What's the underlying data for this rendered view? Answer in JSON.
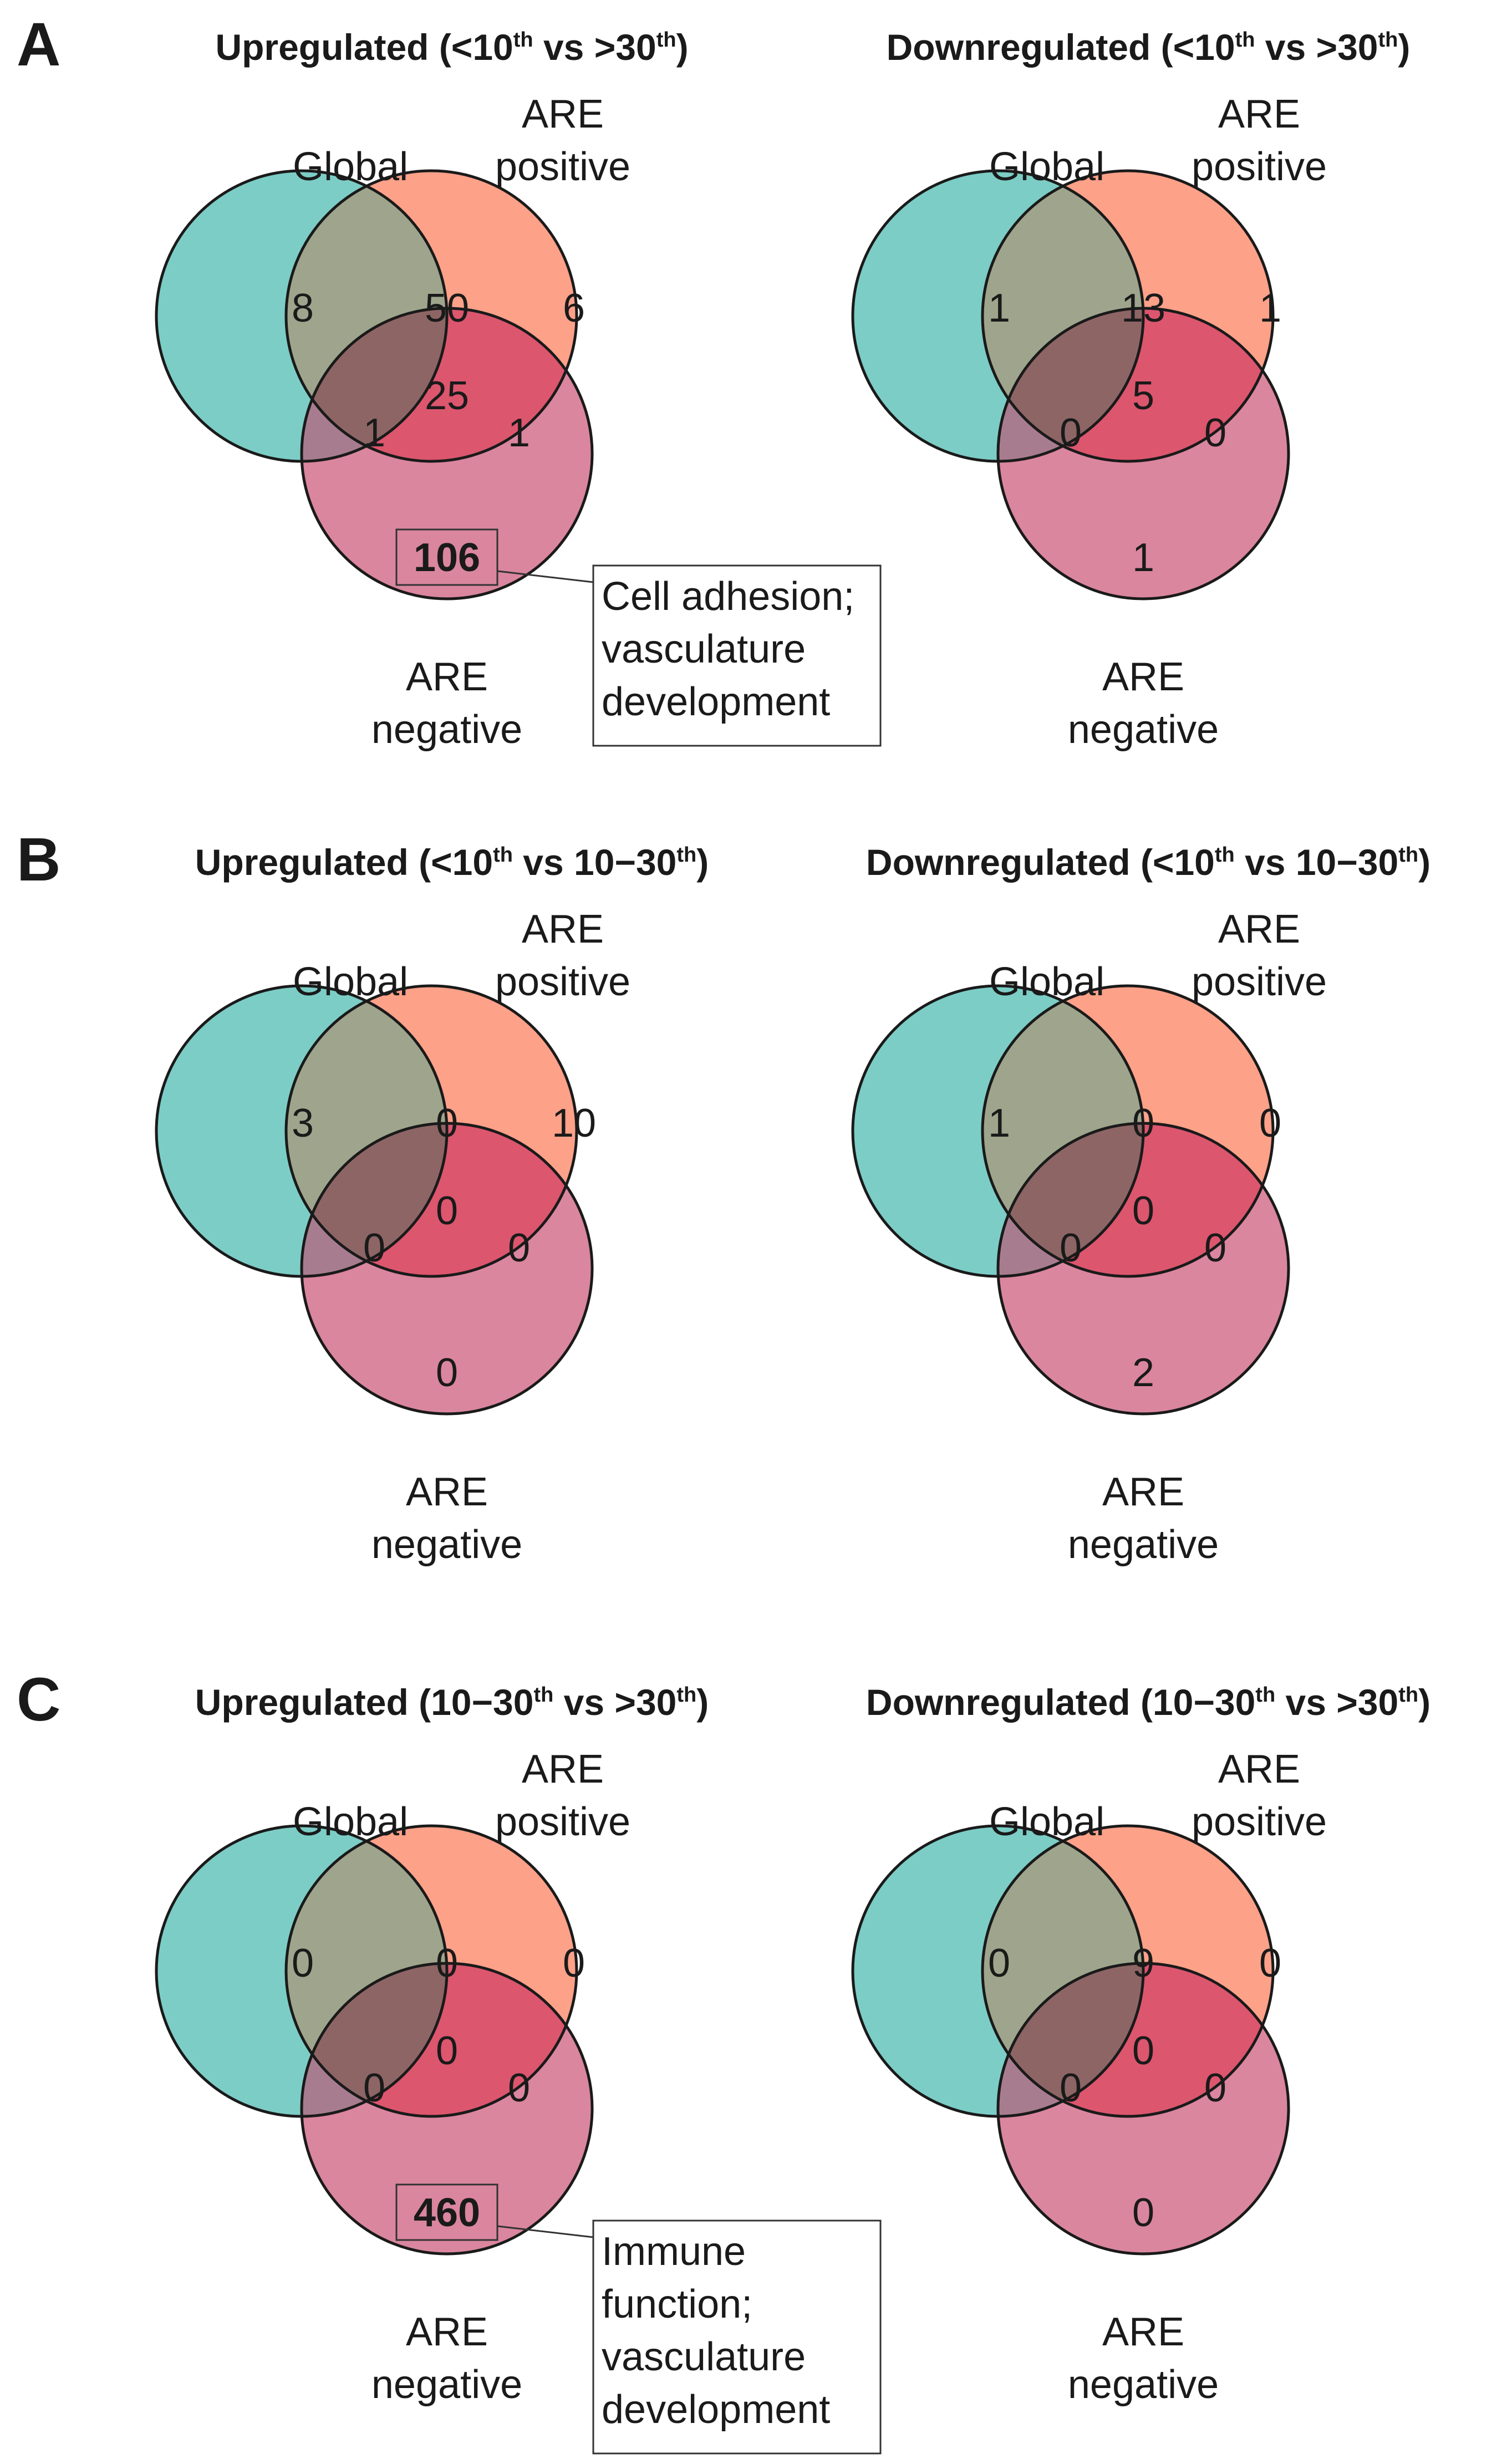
{
  "colors": {
    "global": "#7ccdc6",
    "are_positive": "#fda189",
    "are_negative": "#da869e",
    "global_x_positive": "#9ea58c",
    "global_x_negative": "#a87c8f",
    "positive_x_negative": "#dc566e",
    "all_three": "#8e6565"
  },
  "set_labels": {
    "global": "Global",
    "are_positive": [
      "ARE",
      "positive"
    ],
    "are_negative": [
      "ARE",
      "negative"
    ]
  },
  "panels": [
    {
      "letter": "A",
      "diagrams": [
        {
          "title_prefix": "Upregulated (<10",
          "sup1": "th",
          "title_mid": " vs >30",
          "sup2": "th",
          "title_suffix": ")",
          "counts": {
            "global_only": "8",
            "global_positive": "50",
            "positive_only": "6",
            "all": "25",
            "global_negative": "1",
            "positive_negative": "1",
            "negative_only": "106"
          },
          "highlight_negative": true,
          "note": [
            "Cell adhesion;",
            "vasculature",
            "development"
          ]
        },
        {
          "title_prefix": "Downregulated (<10",
          "sup1": "th",
          "title_mid": " vs >30",
          "sup2": "th",
          "title_suffix": ")",
          "counts": {
            "global_only": "1",
            "global_positive": "13",
            "positive_only": "1",
            "all": "5",
            "global_negative": "0",
            "positive_negative": "0",
            "negative_only": "1"
          },
          "highlight_negative": false,
          "note": []
        }
      ]
    },
    {
      "letter": "B",
      "diagrams": [
        {
          "title_prefix": "Upregulated (<10",
          "sup1": "th",
          "title_mid": " vs 10−30",
          "sup2": "th",
          "title_suffix": ")",
          "counts": {
            "global_only": "3",
            "global_positive": "0",
            "positive_only": "10",
            "all": "0",
            "global_negative": "0",
            "positive_negative": "0",
            "negative_only": "0"
          },
          "highlight_negative": false,
          "note": []
        },
        {
          "title_prefix": "Downregulated (<10",
          "sup1": "th",
          "title_mid": " vs 10−30",
          "sup2": "th",
          "title_suffix": ")",
          "counts": {
            "global_only": "1",
            "global_positive": "0",
            "positive_only": "0",
            "all": "0",
            "global_negative": "0",
            "positive_negative": "0",
            "negative_only": "2"
          },
          "highlight_negative": false,
          "note": []
        }
      ]
    },
    {
      "letter": "C",
      "diagrams": [
        {
          "title_prefix": "Upregulated (10−30",
          "sup1": "th",
          "title_mid": " vs >30",
          "sup2": "th",
          "title_suffix": ")",
          "counts": {
            "global_only": "0",
            "global_positive": "0",
            "positive_only": "0",
            "all": "0",
            "global_negative": "0",
            "positive_negative": "0",
            "negative_only": "460"
          },
          "highlight_negative": true,
          "note": [
            "Immune",
            "function;",
            "vasculature",
            "development"
          ]
        },
        {
          "title_prefix": "Downregulated (10−30",
          "sup1": "th",
          "title_mid": " vs >30",
          "sup2": "th",
          "title_suffix": ")",
          "counts": {
            "global_only": "0",
            "global_positive": "9",
            "positive_only": "0",
            "all": "0",
            "global_negative": "0",
            "positive_negative": "0",
            "negative_only": "0"
          },
          "highlight_negative": false,
          "note": []
        }
      ]
    }
  ]
}
